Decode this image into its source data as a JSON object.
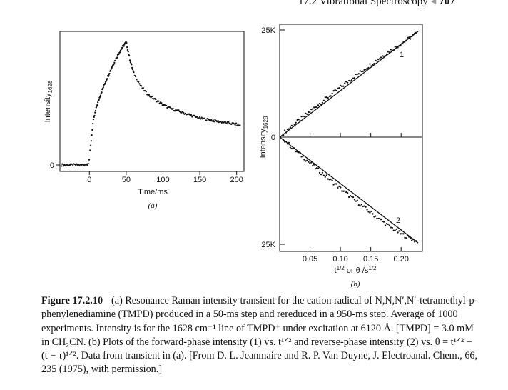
{
  "running_head": {
    "section": "17.2 Vibrational Spectroscopy",
    "separator": "◂",
    "page": "707"
  },
  "figure": {
    "panel_a": {
      "ylabel_main": "Intensity",
      "ylabel_sub": "1628",
      "xlabel": "Time/ms",
      "panel_label": "(a)",
      "y_tick_labels": [
        "0"
      ],
      "x_tick_labels": [
        "0",
        "50",
        "100",
        "150",
        "200"
      ]
    },
    "panel_b": {
      "ylabel_main": "Intensity",
      "ylabel_sub": "1628",
      "xlabel": "t^1/2 or θ /s^1/2",
      "panel_label": "(b)",
      "y_tick_labels": [
        "25K",
        "0",
        "25K"
      ],
      "x_tick_labels": [
        "0.05",
        "0.10",
        "0.15",
        "0.20"
      ],
      "curve_labels": [
        "1",
        "2"
      ]
    }
  },
  "chart_data": [
    {
      "type": "scatter",
      "ylabel": "Intensity1628",
      "xlabel": "Time/ms",
      "xlim": [
        -40,
        210
      ],
      "xticks": [
        0,
        50,
        100,
        150,
        200
      ],
      "yticks": [
        0
      ],
      "intensity_scale": "arbitrary (0 = baseline, 1 = peak)",
      "series": [
        {
          "x": [
            -38,
            -30,
            -20,
            -10,
            -2,
            0,
            5,
            10,
            15,
            20,
            25,
            30,
            35,
            40,
            45,
            50,
            55,
            60,
            70,
            80,
            90,
            100,
            110,
            120,
            130,
            140,
            150,
            160,
            170,
            180,
            190,
            200,
            205
          ],
          "y": [
            0.0,
            0.0,
            0.0,
            0.0,
            0.01,
            0.05,
            0.35,
            0.48,
            0.57,
            0.65,
            0.72,
            0.79,
            0.85,
            0.91,
            0.96,
            1.0,
            0.86,
            0.75,
            0.64,
            0.57,
            0.53,
            0.49,
            0.46,
            0.44,
            0.42,
            0.4,
            0.38,
            0.37,
            0.36,
            0.35,
            0.34,
            0.33,
            0.32
          ]
        }
      ]
    },
    {
      "type": "scatter",
      "ylabel": "Intensity1628",
      "xlabel": "t1/2 or θ /s1/2",
      "xlim": [
        0,
        0.235
      ],
      "ylim": [
        -25000,
        25000
      ],
      "xticks": [
        0.05,
        0.1,
        0.15,
        0.2
      ],
      "yticks": [
        "25K",
        "0",
        "25K"
      ],
      "series": [
        {
          "name": "1",
          "x": [
            0.005,
            0.02,
            0.04,
            0.06,
            0.08,
            0.1,
            0.12,
            0.14,
            0.16,
            0.18,
            0.2,
            0.215,
            0.225
          ],
          "y": [
            800,
            2600,
            4800,
            7200,
            9400,
            11600,
            13800,
            15900,
            18000,
            20000,
            21800,
            23200,
            24200
          ]
        },
        {
          "name": "2",
          "x": [
            0.005,
            0.02,
            0.04,
            0.06,
            0.08,
            0.1,
            0.12,
            0.14,
            0.16,
            0.18,
            0.2,
            0.215,
            0.225
          ],
          "y": [
            -200,
            -2400,
            -4800,
            -7300,
            -9600,
            -12000,
            -14300,
            -16500,
            -18700,
            -20800,
            -22600,
            -23600,
            -24300
          ]
        }
      ]
    }
  ],
  "caption": {
    "label": "Figure 17.2.10",
    "text": "(a) Resonance Raman intensity transient for the cation radical of N,N,N′,N′-tetramethyl-p-phenylenediamine (TMPD) produced in a 50-ms step and rereduced in a 950-ms step. Average of 1000 experiments. Intensity is for the 1628 cm⁻¹ line of TMPD⁺ under excitation at 6120 Å. [TMPD] = 3.0 mM in CH₃CN. (b) Plots of the forward-phase intensity (1) vs. t¹ᐟ² and reverse-phase intensity (2) vs. θ = t¹ᐟ² − (t − τ)¹ᐟ². Data from transient in (a). [From D. L. Jeanmaire and R. P. Van Duyne, J. Electroanal. Chem., 66, 235 (1975), with permission.]"
  }
}
